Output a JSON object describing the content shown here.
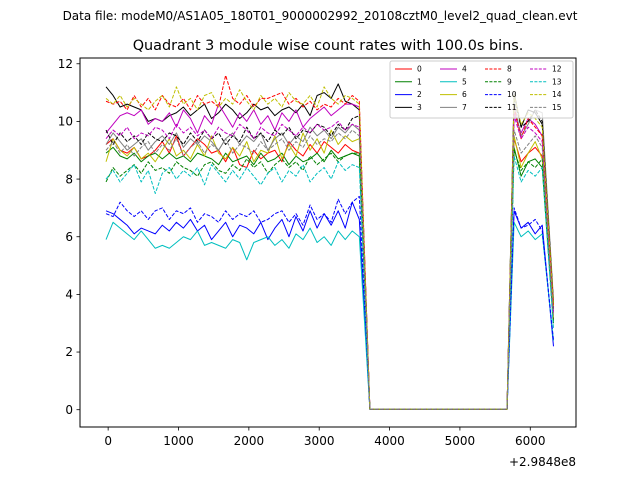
{
  "suptitle": "Data file: modeM0/AS1A05_180T01_9000002992_20108cztM0_level2_quad_clean.evt",
  "chart_data": {
    "type": "line",
    "title": "Quadrant 3 module wise count rates with 100.0s bins.",
    "xlabel": "",
    "ylabel": "",
    "x_offset_label": "+2.9848e8",
    "xlim": [
      -400,
      6650
    ],
    "ylim": [
      -0.6,
      12.2
    ],
    "x_ticks": [
      0,
      1000,
      2000,
      3000,
      4000,
      5000,
      6000
    ],
    "y_ticks": [
      0,
      2,
      4,
      6,
      8,
      10,
      12
    ],
    "legend_position": "top-right",
    "legend_columns": 4,
    "x": [
      -30,
      70,
      170,
      270,
      370,
      470,
      570,
      670,
      770,
      870,
      970,
      1070,
      1170,
      1270,
      1370,
      1470,
      1570,
      1670,
      1770,
      1870,
      1970,
      2070,
      2170,
      2270,
      2370,
      2470,
      2570,
      2670,
      2770,
      2870,
      2970,
      3070,
      3170,
      3270,
      3370,
      3470,
      3570,
      3720,
      5670,
      5770,
      5870,
      5970,
      6070,
      6170,
      6330
    ],
    "series": [
      {
        "name": "0",
        "color": "#ff0000",
        "dash": "solid",
        "values": [
          9.2,
          9.4,
          9.0,
          8.9,
          9.1,
          8.7,
          8.8,
          9.0,
          9.3,
          8.9,
          9.5,
          8.8,
          9.1,
          9.4,
          9.2,
          8.9,
          9.0,
          8.6,
          9.1,
          8.5,
          8.4,
          9.0,
          8.7,
          8.9,
          9.0,
          8.6,
          9.3,
          9.0,
          8.8,
          9.2,
          8.9,
          9.3,
          9.1,
          8.9,
          9.2,
          9.0,
          8.9,
          0.02,
          0.02,
          9.4,
          8.6,
          8.9,
          9.1,
          8.8,
          3.1
        ]
      },
      {
        "name": "1",
        "color": "#008000",
        "dash": "solid",
        "values": [
          8.9,
          9.1,
          8.8,
          8.7,
          8.9,
          8.6,
          8.8,
          8.9,
          8.7,
          8.9,
          8.7,
          8.8,
          8.6,
          8.9,
          8.8,
          8.7,
          8.5,
          8.9,
          8.6,
          8.7,
          8.8,
          8.5,
          8.9,
          8.6,
          8.7,
          8.9,
          8.5,
          8.8,
          8.6,
          8.7,
          8.9,
          8.6,
          9.0,
          8.7,
          8.8,
          8.9,
          8.8,
          0.02,
          0.02,
          9.1,
          8.1,
          8.6,
          8.7,
          8.4,
          3.0
        ]
      },
      {
        "name": "2",
        "color": "#0000ff",
        "dash": "solid",
        "values": [
          6.9,
          6.8,
          6.6,
          6.4,
          6.1,
          6.3,
          6.2,
          6.1,
          6.4,
          6.2,
          6.5,
          6.3,
          6.6,
          6.2,
          6.4,
          5.9,
          6.2,
          6.5,
          6.0,
          6.4,
          6.3,
          6.1,
          6.5,
          5.9,
          6.3,
          6.6,
          6.0,
          6.7,
          6.2,
          6.9,
          6.3,
          6.8,
          6.4,
          6.9,
          6.3,
          7.2,
          6.6,
          0.02,
          0.02,
          6.9,
          6.3,
          6.5,
          6.1,
          6.4,
          2.2
        ]
      },
      {
        "name": "3",
        "color": "#000000",
        "dash": "solid",
        "values": [
          11.2,
          10.9,
          10.5,
          10.6,
          10.5,
          10.4,
          10.0,
          10.1,
          10.0,
          10.2,
          10.3,
          10.5,
          10.2,
          10.4,
          10.6,
          10.1,
          10.3,
          10.6,
          10.4,
          10.1,
          10.3,
          10.6,
          10.4,
          10.5,
          10.2,
          10.4,
          10.5,
          10.3,
          10.6,
          10.2,
          10.9,
          11.0,
          10.8,
          11.3,
          10.7,
          10.6,
          10.4,
          0.02,
          0.02,
          11.0,
          9.8,
          10.4,
          10.3,
          9.9,
          3.5
        ]
      },
      {
        "name": "4",
        "color": "#bf00bf",
        "dash": "solid",
        "values": [
          9.6,
          9.9,
          10.2,
          10.3,
          10.2,
          10.4,
          9.9,
          10.1,
          10.0,
          10.3,
          9.8,
          10.4,
          10.1,
          9.6,
          10.2,
          9.9,
          10.6,
          10.2,
          9.8,
          10.3,
          10.0,
          10.4,
          9.9,
          10.2,
          9.7,
          10.3,
          10.0,
          10.4,
          9.8,
          10.1,
          10.3,
          10.5,
          10.2,
          10.4,
          10.6,
          10.6,
          10.5,
          0.02,
          0.02,
          10.3,
          9.6,
          10.1,
          9.9,
          9.5,
          3.4
        ]
      },
      {
        "name": "5",
        "color": "#00bfbf",
        "dash": "solid",
        "values": [
          5.9,
          6.5,
          6.3,
          6.1,
          5.9,
          6.2,
          5.9,
          5.6,
          5.7,
          5.6,
          5.8,
          6.0,
          5.9,
          6.2,
          5.7,
          5.8,
          5.7,
          5.6,
          5.9,
          5.8,
          5.2,
          5.8,
          5.9,
          6.0,
          5.7,
          5.9,
          5.6,
          6.1,
          5.9,
          6.3,
          5.8,
          6.0,
          5.7,
          6.2,
          5.9,
          6.2,
          6.0,
          0.02,
          0.02,
          6.5,
          6.0,
          6.2,
          5.9,
          6.1,
          2.4
        ]
      },
      {
        "name": "6",
        "color": "#bfbf00",
        "dash": "solid",
        "values": [
          8.6,
          9.4,
          9.0,
          8.8,
          9.1,
          8.7,
          8.9,
          8.6,
          9.0,
          9.4,
          8.8,
          9.0,
          8.7,
          9.2,
          8.8,
          9.5,
          8.9,
          8.7,
          9.1,
          8.8,
          9.3,
          8.6,
          9.0,
          8.9,
          9.5,
          8.7,
          9.2,
          8.8,
          9.6,
          9.0,
          9.4,
          8.9,
          9.7,
          9.2,
          9.5,
          9.3,
          9.4,
          0.02,
          0.02,
          9.5,
          8.4,
          8.9,
          9.3,
          8.7,
          3.2
        ]
      },
      {
        "name": "7",
        "color": "#808080",
        "dash": "solid",
        "values": [
          9.2,
          9.6,
          9.3,
          9.0,
          9.2,
          9.4,
          9.0,
          9.3,
          9.5,
          9.2,
          9.6,
          9.1,
          9.4,
          9.2,
          9.5,
          9.3,
          9.0,
          9.4,
          9.6,
          9.2,
          9.5,
          9.3,
          9.6,
          9.0,
          9.4,
          9.6,
          9.2,
          9.5,
          9.3,
          9.8,
          9.5,
          9.7,
          9.4,
          9.8,
          9.6,
          9.9,
          9.7,
          0.02,
          0.02,
          10.6,
          9.5,
          9.9,
          10.4,
          10.3,
          3.8
        ]
      },
      {
        "name": "8",
        "color": "#ff0000",
        "dash": "dashed",
        "values": [
          10.7,
          10.6,
          10.7,
          10.4,
          10.9,
          10.5,
          10.8,
          10.4,
          10.9,
          10.6,
          10.5,
          10.8,
          10.4,
          10.9,
          10.6,
          10.7,
          10.5,
          11.6,
          10.8,
          10.6,
          10.9,
          10.5,
          10.8,
          10.8,
          10.9,
          11.0,
          10.6,
          10.8,
          10.5,
          10.7,
          10.4,
          10.6,
          10.5,
          10.8,
          10.6,
          10.9,
          10.7,
          0.02,
          0.02,
          10.5,
          9.4,
          10.1,
          9.8,
          9.5,
          3.6
        ]
      },
      {
        "name": "9",
        "color": "#008000",
        "dash": "dashed",
        "values": [
          7.9,
          8.4,
          8.1,
          8.3,
          8.5,
          8.2,
          8.6,
          8.3,
          8.4,
          8.2,
          8.6,
          8.4,
          8.3,
          8.1,
          8.5,
          8.6,
          8.3,
          8.2,
          8.5,
          8.3,
          8.7,
          8.4,
          8.6,
          8.2,
          8.5,
          8.7,
          8.4,
          8.6,
          8.3,
          8.8,
          8.5,
          8.7,
          8.9,
          8.6,
          8.8,
          8.9,
          8.9,
          0.02,
          0.02,
          9.0,
          8.3,
          8.6,
          8.4,
          8.7,
          3.0
        ]
      },
      {
        "name": "10",
        "color": "#0000ff",
        "dash": "dashed",
        "values": [
          6.8,
          6.7,
          7.2,
          6.9,
          6.7,
          6.9,
          6.6,
          6.9,
          7.0,
          6.6,
          6.9,
          6.8,
          7.0,
          6.5,
          6.8,
          6.7,
          6.5,
          6.9,
          6.6,
          6.8,
          6.7,
          6.9,
          6.5,
          6.6,
          6.8,
          6.9,
          6.5,
          6.8,
          6.4,
          7.1,
          6.6,
          6.8,
          6.5,
          7.3,
          6.8,
          7.2,
          7.4,
          0.02,
          0.02,
          7.0,
          6.3,
          6.4,
          6.6,
          6.2,
          2.4
        ]
      },
      {
        "name": "11",
        "color": "#000000",
        "dash": "dashed",
        "values": [
          9.7,
          9.2,
          9.6,
          9.3,
          9.5,
          9.2,
          9.6,
          9.4,
          9.3,
          9.6,
          9.5,
          9.2,
          9.6,
          9.3,
          9.7,
          9.4,
          9.6,
          9.2,
          9.5,
          9.3,
          9.8,
          9.4,
          9.6,
          9.3,
          9.7,
          9.5,
          9.8,
          9.4,
          9.7,
          9.6,
          9.9,
          9.8,
          9.5,
          9.9,
          9.7,
          10.1,
          10.2,
          0.02,
          0.02,
          10.8,
          9.8,
          10.0,
          10.4,
          10.0,
          3.7
        ]
      },
      {
        "name": "12",
        "color": "#bf00bf",
        "dash": "dashed",
        "values": [
          9.4,
          9.7,
          9.5,
          9.8,
          9.4,
          9.6,
          9.5,
          9.8,
          9.7,
          9.4,
          9.9,
          9.6,
          9.8,
          9.5,
          9.7,
          9.4,
          9.8,
          9.6,
          9.5,
          9.9,
          9.7,
          9.4,
          9.8,
          9.6,
          9.5,
          9.9,
          9.7,
          9.5,
          9.8,
          9.6,
          9.9,
          9.7,
          9.8,
          10.0,
          9.7,
          9.9,
          9.8,
          0.02,
          0.02,
          10.2,
          9.4,
          9.8,
          9.6,
          9.3,
          3.3
        ]
      },
      {
        "name": "13",
        "color": "#00bfbf",
        "dash": "dashed",
        "values": [
          8.0,
          8.3,
          7.9,
          8.2,
          8.5,
          7.9,
          8.3,
          7.5,
          8.2,
          8.4,
          8.0,
          8.3,
          8.1,
          8.4,
          7.8,
          8.5,
          8.2,
          7.9,
          8.3,
          8.0,
          8.4,
          8.1,
          7.8,
          8.2,
          8.4,
          7.9,
          8.3,
          8.1,
          8.5,
          7.9,
          8.2,
          8.4,
          8.0,
          8.6,
          8.3,
          8.5,
          8.4,
          0.02,
          0.02,
          8.8,
          7.9,
          8.3,
          8.1,
          8.4,
          2.8
        ]
      },
      {
        "name": "14",
        "color": "#bfbf00",
        "dash": "dashed",
        "values": [
          10.8,
          10.6,
          10.9,
          10.5,
          10.8,
          10.6,
          10.4,
          10.7,
          10.9,
          10.5,
          11.2,
          10.6,
          10.8,
          10.4,
          10.9,
          11.0,
          10.5,
          10.8,
          10.6,
          11.1,
          10.7,
          10.4,
          10.9,
          10.6,
          10.8,
          10.5,
          11.0,
          10.7,
          10.6,
          10.9,
          10.5,
          11.2,
          10.8,
          10.6,
          10.9,
          10.8,
          10.6,
          0.02,
          0.02,
          10.9,
          9.9,
          10.3,
          10.1,
          9.8,
          3.6
        ]
      },
      {
        "name": "15",
        "color": "#808080",
        "dash": "dashed",
        "values": [
          9.0,
          9.3,
          8.9,
          9.2,
          8.8,
          9.1,
          9.3,
          8.9,
          9.2,
          9.0,
          9.4,
          8.8,
          9.1,
          9.3,
          8.9,
          9.2,
          9.0,
          9.4,
          8.9,
          9.2,
          9.1,
          8.9,
          9.3,
          9.0,
          9.2,
          9.4,
          9.0,
          9.3,
          9.1,
          9.5,
          9.2,
          9.4,
          9.3,
          9.6,
          9.4,
          9.7,
          9.5,
          0.02,
          0.02,
          9.7,
          8.9,
          9.2,
          9.5,
          9.1,
          3.2
        ]
      }
    ]
  }
}
